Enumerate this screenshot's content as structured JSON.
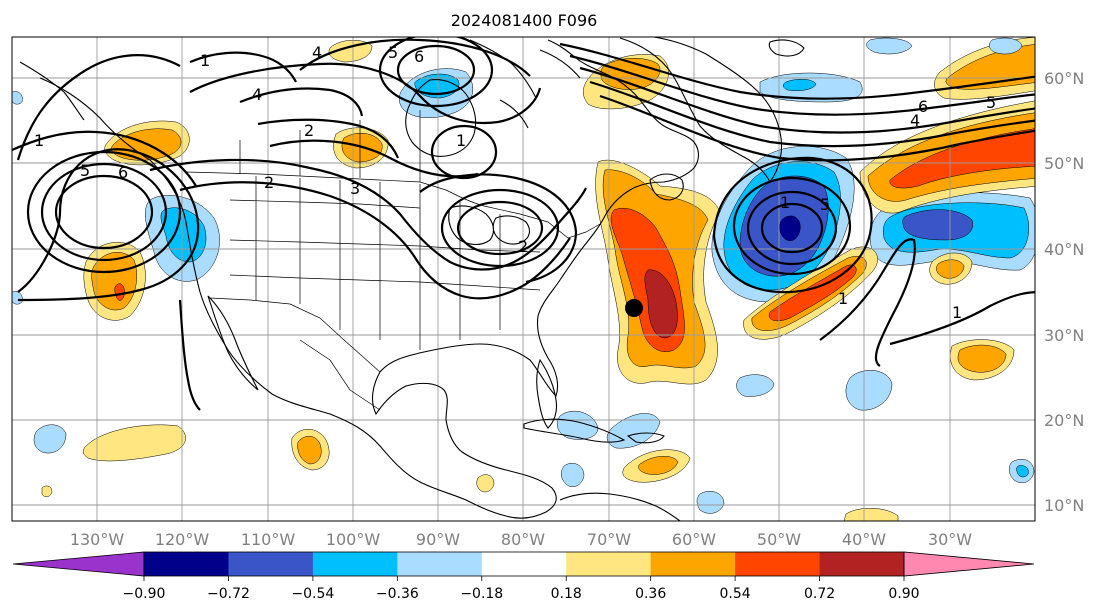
{
  "title": "2024081400 F096",
  "colors": {
    "c_m090_below": "#9933cc",
    "c_m090_m072": "#00008b",
    "c_m072_m054": "#3a55c8",
    "c_m054_m036": "#00bfff",
    "c_m036_m018": "#aadcff",
    "c_m018_018": "#ffffff",
    "c_018_036": "#ffe680",
    "c_036_054": "#ffa500",
    "c_054_072": "#ff4500",
    "c_072_090": "#b22222",
    "c_090_above": "#ff88b0"
  },
  "colorbar": {
    "tick_labels": [
      "−0.90",
      "−0.72",
      "−0.54",
      "−0.36",
      "−0.18",
      "0.18",
      "0.36",
      "0.54",
      "0.72",
      "0.90"
    ],
    "bins": [
      {
        "color": "#00008b"
      },
      {
        "color": "#3a55c8"
      },
      {
        "color": "#00bfff"
      },
      {
        "color": "#aadcff"
      },
      {
        "color": "#ffffff"
      },
      {
        "color": "#ffe680"
      },
      {
        "color": "#ffa500"
      },
      {
        "color": "#ff4500"
      },
      {
        "color": "#b22222"
      }
    ],
    "under_color": "#9933cc",
    "over_color": "#ff88b0"
  },
  "map": {
    "lat_labels": [
      "60°N",
      "50°N",
      "40°N",
      "30°N",
      "20°N",
      "10°N"
    ],
    "lon_labels": [
      "130°W",
      "120°W",
      "110°W",
      "100°W",
      "90°W",
      "80°W",
      "70°W",
      "60°W",
      "50°W",
      "40°W",
      "30°W"
    ],
    "grid": "on",
    "marker": "storm-position-dot"
  },
  "contour_labels": [
    "1",
    "5",
    "6",
    "4",
    "5",
    "6",
    "2",
    "4",
    "1",
    "2",
    "3",
    "1",
    "2",
    "6",
    "5",
    "4",
    "1",
    "5",
    "1",
    "1"
  ]
}
